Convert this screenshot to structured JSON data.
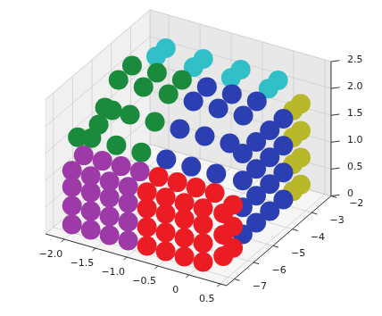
{
  "chart_data": {
    "type": "scatter",
    "grid": true,
    "xlim": [
      -2.3,
      0.6
    ],
    "ylim": [
      -7.4,
      -2.0
    ],
    "zlim": [
      0,
      2.5
    ],
    "xticks": [
      {
        "value": -2.0,
        "label": "−2.0"
      },
      {
        "value": -1.5,
        "label": "−1.5"
      },
      {
        "value": -1.0,
        "label": "−1.0"
      },
      {
        "value": -0.5,
        "label": "−0.5"
      },
      0,
      0.5
    ],
    "yticks": [
      {
        "value": -2,
        "label": "−2"
      },
      {
        "value": -3,
        "label": "−3"
      },
      {
        "value": -4,
        "label": "−4"
      },
      {
        "value": -5,
        "label": "−5"
      },
      {
        "value": -6,
        "label": "−6"
      },
      {
        "value": -7,
        "label": "−7"
      }
    ],
    "zticks": [
      0,
      0.5,
      {
        "value": 1,
        "label": "1.0"
      },
      1.5,
      {
        "value": 2,
        "label": "2.0"
      },
      2.5
    ],
    "series": [
      {
        "color": "#ec1c24",
        "x": [
          -0.8,
          -0.5,
          -0.2,
          0.1,
          -0.8,
          -0.5,
          -0.2,
          0.1,
          -0.8,
          -0.5,
          -0.2,
          0.1,
          -0.8,
          -0.5,
          -0.2,
          0.1,
          -0.8,
          -0.5,
          -0.2,
          0.1,
          0.3,
          0.3,
          0.3,
          0.3,
          0.3,
          0.3
        ],
        "y": [
          -7.0,
          -7.0,
          -7.0,
          -7.0,
          -7.0,
          -7.0,
          -7.0,
          -7.0,
          -7.0,
          -7.0,
          -7.0,
          -7.0,
          -7.0,
          -7.0,
          -7.0,
          -7.0,
          -6.4,
          -6.4,
          -6.4,
          -6.4,
          -6.6,
          -6.6,
          -6.6,
          -6.1,
          -6.1,
          -6.1
        ],
        "z": [
          0.15,
          0.15,
          0.15,
          0.15,
          0.5,
          0.5,
          0.5,
          0.5,
          0.85,
          0.85,
          0.85,
          0.85,
          1.15,
          1.15,
          1.15,
          1.15,
          1.25,
          1.25,
          1.25,
          1.25,
          0.2,
          0.6,
          1.0,
          0.2,
          0.6,
          1.0
        ]
      },
      {
        "color": "#9e3aa8",
        "x": [
          -2.0,
          -1.7,
          -1.4,
          -1.1,
          -2.0,
          -1.7,
          -1.4,
          -1.1,
          -2.0,
          -1.7,
          -1.4,
          -1.1,
          -2.0,
          -1.7,
          -1.4,
          -1.1,
          -2.0,
          -1.7,
          -1.4,
          -1.1
        ],
        "y": [
          -7.0,
          -7.0,
          -7.0,
          -7.0,
          -7.0,
          -7.0,
          -7.0,
          -7.0,
          -7.0,
          -7.0,
          -7.0,
          -7.0,
          -7.0,
          -7.0,
          -7.0,
          -7.0,
          -6.4,
          -6.4,
          -6.4,
          -6.4
        ],
        "z": [
          0.15,
          0.15,
          0.15,
          0.15,
          0.5,
          0.5,
          0.5,
          0.5,
          0.85,
          0.85,
          0.85,
          0.85,
          1.15,
          1.15,
          1.15,
          1.15,
          1.25,
          1.25,
          1.25,
          1.25
        ]
      },
      {
        "color": "#1a8a3c",
        "x": [
          -2.0,
          -1.6,
          -1.2,
          -2.0,
          -1.6,
          -1.2,
          -2.0,
          -1.6,
          -1.2,
          -2.0,
          -1.6,
          -1.2,
          -2.25,
          -2.1,
          -2.1
        ],
        "y": [
          -6.0,
          -6.0,
          -6.0,
          -5.3,
          -5.3,
          -5.3,
          -4.6,
          -4.6,
          -4.6,
          -3.9,
          -3.9,
          -3.9,
          -5.9,
          -5.3,
          -4.6
        ],
        "z": [
          1.45,
          1.45,
          1.45,
          1.8,
          1.8,
          1.8,
          2.1,
          2.1,
          2.1,
          2.15,
          2.15,
          2.15,
          1.35,
          1.45,
          1.5
        ]
      },
      {
        "color": "#2b3fb3",
        "x": [
          -0.8,
          -0.4,
          0.0,
          -0.8,
          -0.4,
          0.0,
          -0.8,
          -0.4,
          0.0,
          -0.8,
          -0.4,
          0.0,
          0.3,
          0.3,
          0.3,
          0.3,
          0.3,
          0.3,
          0.3,
          0.3,
          0.3,
          0.3,
          0.3,
          0.3,
          0.3,
          0.3,
          0.3,
          0.3
        ],
        "y": [
          -6.0,
          -6.0,
          -6.0,
          -5.3,
          -5.3,
          -5.3,
          -4.6,
          -4.6,
          -4.6,
          -3.9,
          -3.9,
          -3.9,
          -5.6,
          -5.6,
          -5.6,
          -5.6,
          -4.9,
          -4.9,
          -4.9,
          -4.9,
          -4.2,
          -4.2,
          -4.2,
          -4.2,
          -3.5,
          -3.5,
          -3.5,
          -3.5
        ],
        "z": [
          1.45,
          1.45,
          1.45,
          1.8,
          1.8,
          1.8,
          2.1,
          2.1,
          2.1,
          2.15,
          2.15,
          2.15,
          0.3,
          0.8,
          1.3,
          1.8,
          0.3,
          0.8,
          1.3,
          1.8,
          0.3,
          0.8,
          1.3,
          1.8,
          0.3,
          0.8,
          1.3,
          1.8
        ]
      },
      {
        "color": "#31c0c8",
        "x": [
          -1.8,
          -1.2,
          -0.6,
          0.0,
          -1.8,
          -1.2,
          -0.6,
          0.0
        ],
        "y": [
          -3.3,
          -3.3,
          -3.3,
          -3.3,
          -2.8,
          -2.8,
          -2.8,
          -2.8
        ],
        "z": [
          2.2,
          2.2,
          2.2,
          2.2,
          2.2,
          2.2,
          2.2,
          2.2
        ]
      },
      {
        "color": "#b8b82a",
        "x": [
          0.3,
          0.3,
          0.3,
          0.3,
          0.3,
          0.3,
          0.3,
          0.3
        ],
        "y": [
          -3.0,
          -3.0,
          -3.0,
          -3.0,
          -2.6,
          -2.6,
          -2.6,
          -2.6
        ],
        "z": [
          0.3,
          0.8,
          1.3,
          1.8,
          0.3,
          0.8,
          1.3,
          1.8
        ]
      }
    ]
  }
}
